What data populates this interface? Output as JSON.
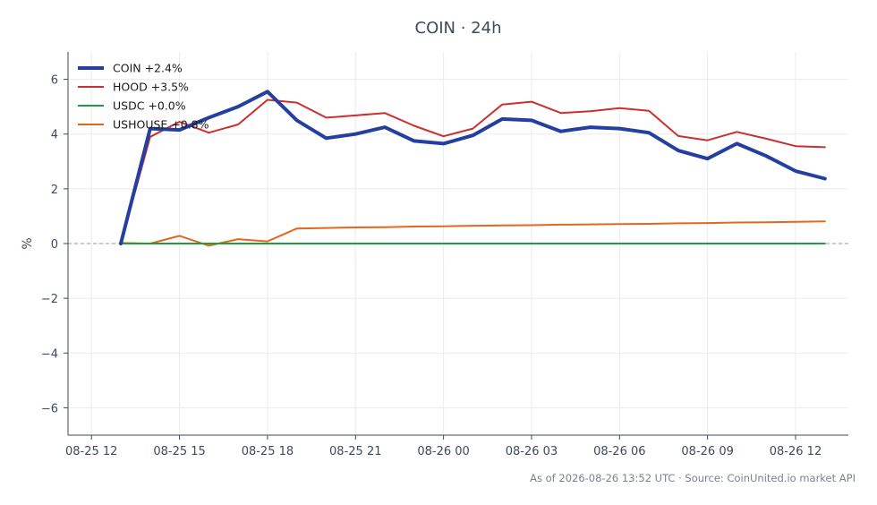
{
  "chart_data": {
    "type": "line",
    "title": "COIN · 24h",
    "xlabel": "",
    "ylabel": "%",
    "xlim": [
      12.0,
      13.25
    ],
    "ylim": [
      -7,
      7
    ],
    "x_ticks": [
      {
        "label": "08-25 12",
        "x": 12
      },
      {
        "label": "08-25 15",
        "x": 15
      },
      {
        "label": "08-25 18",
        "x": 18
      },
      {
        "label": "08-25 21",
        "x": 21
      },
      {
        "label": "08-26 00",
        "x": 24
      },
      {
        "label": "08-26 03",
        "x": 27
      },
      {
        "label": "08-26 06",
        "x": 30
      },
      {
        "label": "08-26 09",
        "x": 33
      },
      {
        "label": "08-26 12",
        "x": 36
      }
    ],
    "y_ticks": [
      -6,
      -4,
      -2,
      0,
      2,
      4,
      6
    ],
    "y_tick_labels": [
      "−6",
      "−4",
      "−2",
      "0",
      "2",
      "4",
      "6"
    ],
    "grid": true,
    "zero_line": true,
    "legend_position": "top-left",
    "x": [
      13,
      14,
      15,
      16,
      17,
      18,
      19,
      20,
      21,
      22,
      23,
      24,
      25,
      26,
      27,
      28,
      29,
      30,
      31,
      32,
      33,
      34,
      35,
      36,
      37
    ],
    "series": [
      {
        "name": "COIN +2.4%",
        "color": "#2340a0",
        "width": 4,
        "values": [
          0.0,
          4.2,
          4.15,
          4.6,
          5.0,
          5.55,
          4.5,
          3.85,
          4.0,
          4.25,
          3.75,
          3.65,
          3.95,
          4.55,
          4.5,
          4.1,
          4.25,
          4.2,
          4.05,
          3.4,
          3.1,
          3.65,
          3.2,
          2.65,
          2.37
        ]
      },
      {
        "name": "HOOD +3.5%",
        "color": "#cc2f2f",
        "width": 2,
        "values": [
          0.0,
          3.9,
          4.45,
          4.05,
          4.35,
          5.25,
          5.15,
          4.6,
          4.68,
          4.77,
          4.3,
          3.92,
          4.2,
          5.08,
          5.18,
          4.77,
          4.83,
          4.95,
          4.85,
          3.93,
          3.77,
          4.08,
          3.83,
          3.56,
          3.52
        ]
      },
      {
        "name": "USDC +0.0%",
        "color": "#1f9e3d",
        "width": 2,
        "values": [
          0.0,
          0.0,
          0.0,
          0.0,
          0.0,
          0.0,
          0.0,
          0.0,
          0.0,
          0.0,
          0.0,
          0.0,
          0.0,
          0.0,
          0.0,
          0.0,
          0.0,
          0.0,
          0.0,
          0.0,
          0.0,
          0.0,
          0.0,
          0.0,
          0.0
        ]
      },
      {
        "name": "USHOUSE +0.8%",
        "color": "#e0691e",
        "width": 2,
        "values": [
          0.02,
          0.0,
          0.28,
          -0.08,
          0.16,
          0.08,
          0.55,
          0.57,
          0.59,
          0.6,
          0.62,
          0.63,
          0.65,
          0.66,
          0.67,
          0.69,
          0.7,
          0.71,
          0.72,
          0.74,
          0.75,
          0.77,
          0.78,
          0.79,
          0.81
        ]
      }
    ]
  },
  "footer": "As of 2026-08-26 13:52 UTC · Source: CoinUnited.io market API"
}
